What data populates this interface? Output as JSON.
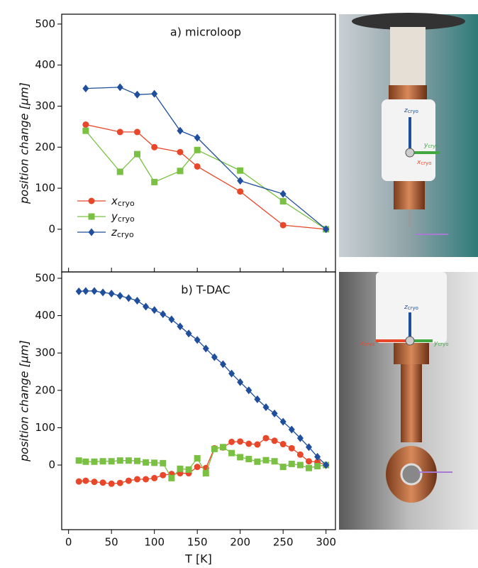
{
  "chart_data": [
    {
      "type": "line",
      "title": "a) microloop",
      "ylabel": "position change [µm]",
      "x": [
        20,
        60,
        80,
        100,
        130,
        150,
        200,
        250,
        300
      ],
      "series": [
        {
          "name": "xcryo",
          "color": "#e8472a",
          "marker": "circle",
          "values": [
            255,
            237,
            237,
            200,
            188,
            153,
            92,
            10,
            0
          ]
        },
        {
          "name": "ycryo",
          "color": "#7ac143",
          "marker": "square",
          "values": [
            240,
            140,
            183,
            115,
            142,
            193,
            143,
            68,
            0
          ]
        },
        {
          "name": "zcryo",
          "color": "#1f4e9c",
          "marker": "diamond",
          "values": [
            343,
            346,
            328,
            330,
            240,
            223,
            118,
            86,
            0
          ]
        }
      ],
      "xlim": [
        -8,
        311
      ],
      "ylim": [
        -104,
        524
      ],
      "yticks": [
        0,
        100,
        200,
        300,
        400,
        500
      ],
      "legend": "lower left"
    },
    {
      "type": "line",
      "title": "b) T-DAC",
      "ylabel": "position change [µm]",
      "xlabel": "T [K]",
      "x": [
        12,
        20,
        30,
        40,
        50,
        60,
        70,
        80,
        90,
        100,
        110,
        120,
        130,
        140,
        150,
        160,
        170,
        180,
        190,
        200,
        210,
        220,
        230,
        240,
        250,
        260,
        270,
        280,
        290,
        300
      ],
      "series": [
        {
          "color": "#e8472a",
          "marker": "circle",
          "values": [
            -44,
            -42,
            -45,
            -47,
            -50,
            -48,
            -42,
            -38,
            -38,
            -35,
            -27,
            -24,
            -22,
            -22,
            -5,
            -8,
            45,
            47,
            62,
            63,
            57,
            55,
            72,
            65,
            56,
            45,
            28,
            10,
            8,
            0
          ]
        },
        {
          "color": "#7ac143",
          "marker": "square",
          "values": [
            12,
            9,
            9,
            10,
            10,
            12,
            12,
            11,
            7,
            6,
            5,
            -35,
            -10,
            -12,
            18,
            -22,
            43,
            48,
            32,
            21,
            16,
            9,
            13,
            10,
            -5,
            3,
            0,
            -8,
            -3,
            0
          ]
        },
        {
          "color": "#1f4e9c",
          "marker": "diamond",
          "values": [
            465,
            466,
            466,
            462,
            459,
            453,
            447,
            440,
            424,
            415,
            404,
            390,
            371,
            352,
            335,
            312,
            289,
            270,
            245,
            222,
            200,
            176,
            155,
            138,
            116,
            95,
            72,
            48,
            22,
            0
          ]
        }
      ],
      "xlim": [
        -8,
        311
      ],
      "ylim": [
        -173,
        517
      ],
      "xticks": [
        0,
        50,
        100,
        150,
        200,
        250,
        300
      ],
      "yticks": [
        0,
        100,
        200,
        300,
        400,
        500
      ]
    }
  ],
  "photos": [
    {
      "labels": [
        "zcryo",
        "ycryo",
        "xcryo"
      ]
    },
    {
      "labels": [
        "zcryo",
        "xcryo",
        "ycryo"
      ]
    }
  ]
}
